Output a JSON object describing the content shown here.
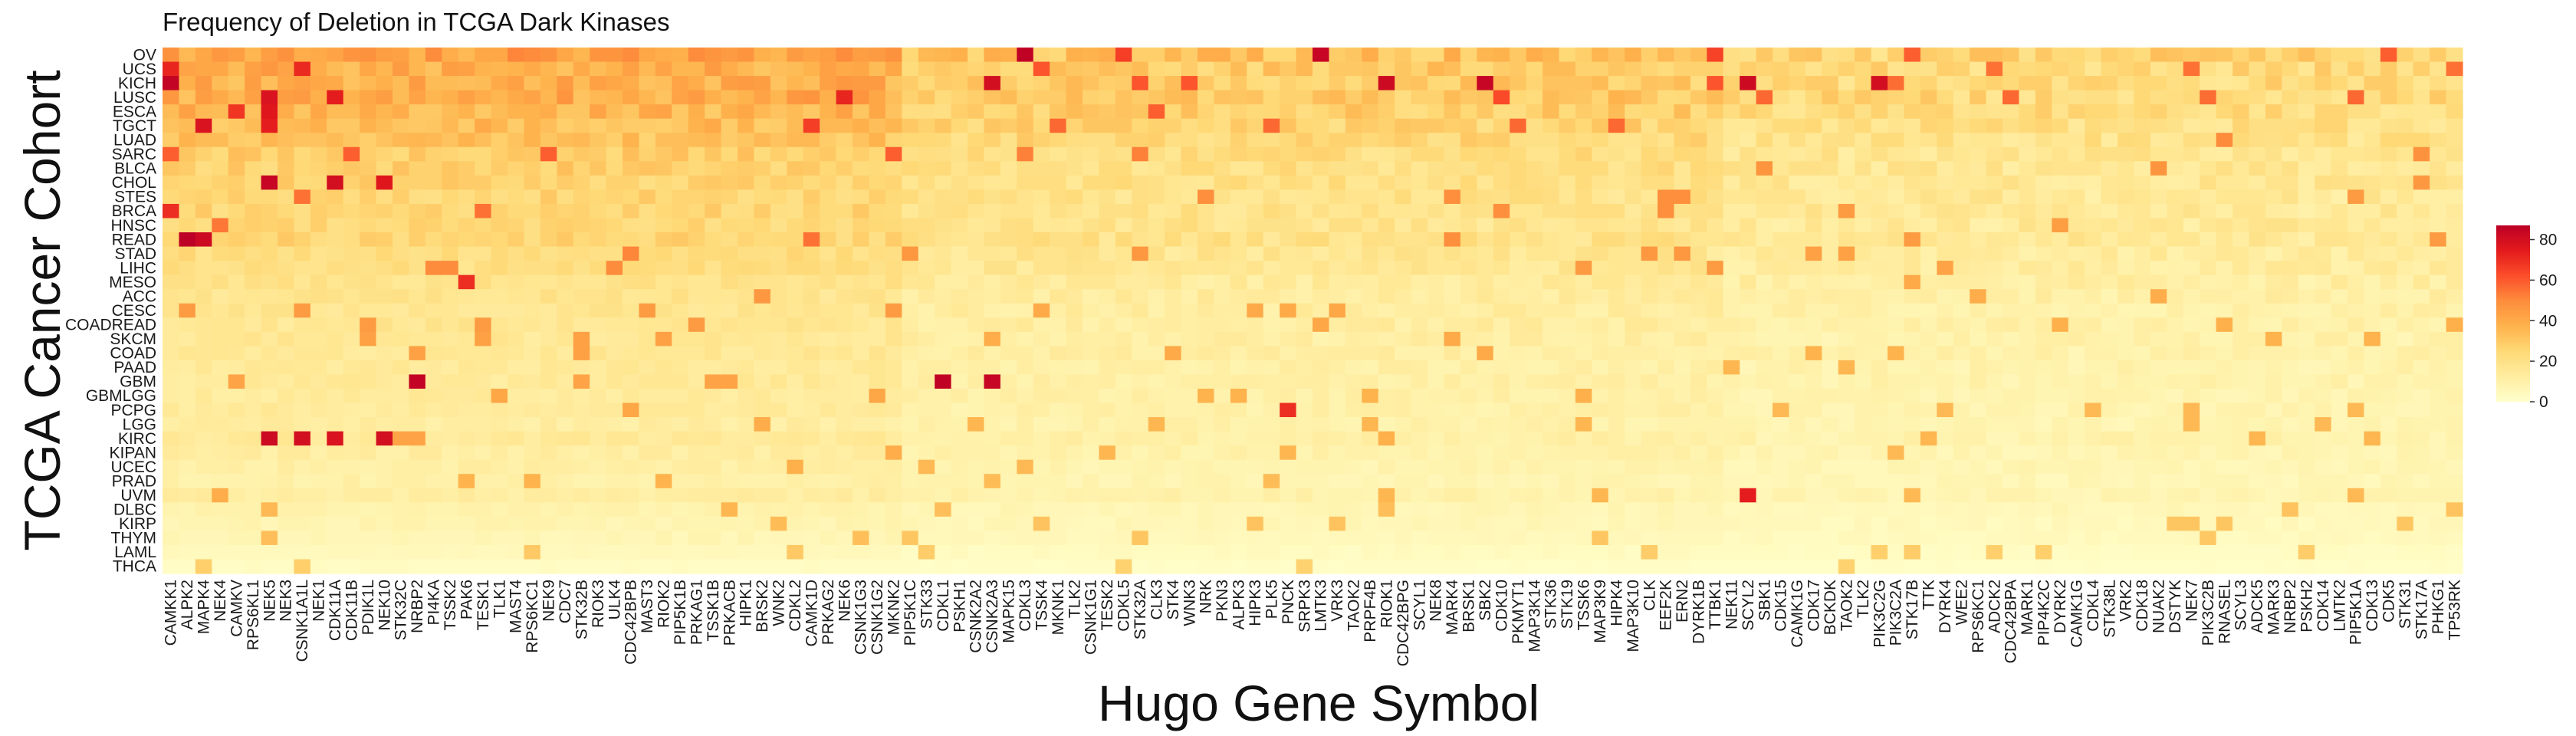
{
  "chart_data": {
    "type": "heatmap",
    "title": "Frequency of Deletion in TCGA Dark Kinases",
    "xlabel": "Hugo Gene Symbol",
    "ylabel": "TCGA Cancer Cohort",
    "rows": [
      "OV",
      "UCS",
      "KICH",
      "LUSC",
      "ESCA",
      "TGCT",
      "LUAD",
      "SARC",
      "BLCA",
      "CHOL",
      "STES",
      "BRCA",
      "HNSC",
      "READ",
      "STAD",
      "LIHC",
      "MESO",
      "ACC",
      "CESC",
      "COADREAD",
      "SKCM",
      "COAD",
      "PAAD",
      "GBM",
      "GBMLGG",
      "PCPG",
      "LGG",
      "KIRC",
      "KIPAN",
      "UCEC",
      "PRAD",
      "UVM",
      "DLBC",
      "KIRP",
      "THYM",
      "LAML",
      "THCA"
    ],
    "columns": [
      "CAMKK1",
      "ALPK2",
      "MAPK4",
      "NEK4",
      "CAMKV",
      "RPS6KL1",
      "NEK5",
      "NEK3",
      "CSNK1A1L",
      "NEK1",
      "CDK11A",
      "CDK11B",
      "PDIK1L",
      "NEK10",
      "STK32C",
      "NRBP2",
      "PI4KA",
      "TSSK2",
      "PAK6",
      "TESK1",
      "TLK1",
      "MAST4",
      "RPS6KC1",
      "NEK9",
      "CDC7",
      "STK32B",
      "RIOK3",
      "ULK4",
      "CDC42BPB",
      "MAST3",
      "RIOK2",
      "PIP5K1B",
      "PRKAG1",
      "TSSK1B",
      "PRKACB",
      "HIPK1",
      "BRSK2",
      "WNK2",
      "CDKL2",
      "CAMK1D",
      "PRKAG2",
      "NEK6",
      "CSNK1G3",
      "CSNK1G2",
      "MKNK2",
      "PIP5K1C",
      "STK33",
      "CDKL1",
      "PSKH1",
      "CSNK2A2",
      "CSNK2A3",
      "MAPK15",
      "CDKL3",
      "TSSK4",
      "MKNK1",
      "TLK2",
      "CSNK1G1",
      "TESK2",
      "CDKL5",
      "STK32A",
      "CLK3",
      "STK4",
      "WNK3",
      "NRK",
      "PKN3",
      "ALPK3",
      "HIPK3",
      "PLK5",
      "PNCK",
      "SRPK3",
      "LMTK3",
      "VRK3",
      "TAOK2",
      "PRPF4B",
      "RIOK1",
      "CDC42BPG",
      "SCYL1",
      "NEK8",
      "MARK4",
      "BRSK1",
      "SBK2",
      "CDK10",
      "PKMYT1",
      "MAP3K14",
      "STK36",
      "STK19",
      "TSSK6",
      "MAP3K9",
      "HIPK4",
      "MAP3K10",
      "CLK",
      "EEF2K",
      "ERN2",
      "DYRK1B",
      "TTBK1",
      "NEK11",
      "SCYL2",
      "SBK1",
      "CDK15",
      "CAMK1G",
      "CDK17",
      "BCKDK",
      "TAOK2",
      "TLK2",
      "PIK3C2G",
      "PIK3C2A",
      "STK17B",
      "TTK",
      "DYRK4",
      "WEE2",
      "RPS6KC1",
      "ADCK2",
      "CDC42BPA",
      "MARK1",
      "PIP4K2C",
      "DYRK2",
      "CAMK1G",
      "CDKL4",
      "STK38L",
      "VRK2",
      "CDK18",
      "NUAK2",
      "DSTYK",
      "NEK7",
      "PIK3C2B",
      "RNASEL",
      "SCYL3",
      "ADCK5",
      "MARK3",
      "NRBP2",
      "PSKH2",
      "CDK14",
      "LMTK2",
      "PIP5K1A",
      "CDK13",
      "CDK5",
      "STK31",
      "STK17A",
      "PHKG1",
      "TP53RK"
    ],
    "value_range": [
      0,
      87
    ],
    "colorscale": [
      "#ffffcc",
      "#ffeda0",
      "#fed976",
      "#feb24c",
      "#fd8d3c",
      "#fc4e2a",
      "#e31a1c",
      "#bd0026"
    ],
    "legend": {
      "ticks": [
        0,
        20,
        40,
        60,
        80
      ],
      "placement": "right"
    }
  }
}
